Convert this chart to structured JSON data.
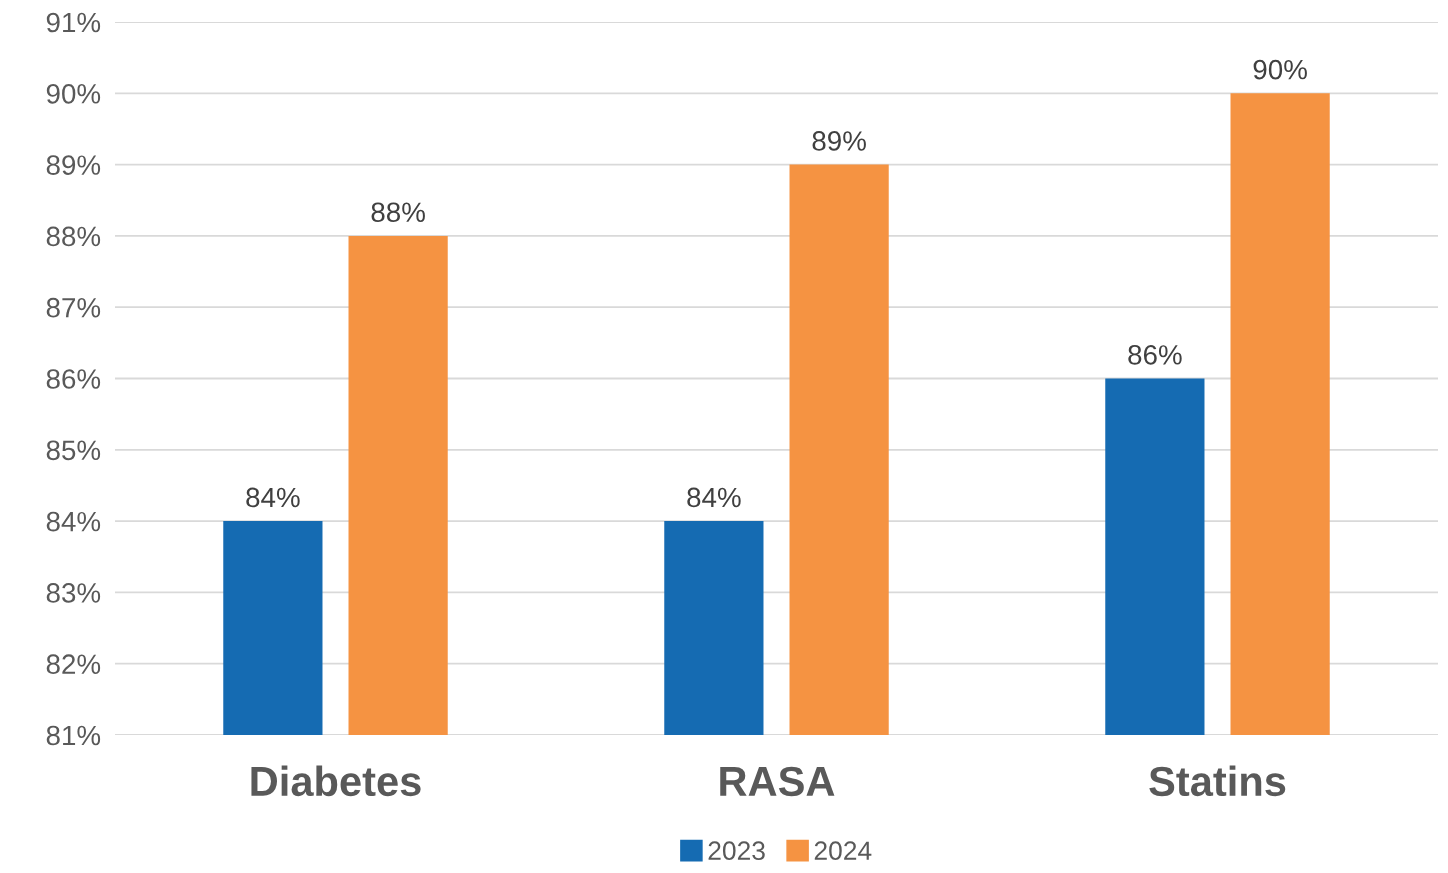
{
  "chart_data": {
    "type": "bar",
    "categories": [
      "Diabetes",
      "RASA",
      "Statins"
    ],
    "series": [
      {
        "name": "2023",
        "color": "#156bb2",
        "values": [
          84,
          84,
          86
        ],
        "value_labels": [
          "84%",
          "84%",
          "86%"
        ]
      },
      {
        "name": "2024",
        "color": "#f59342",
        "values": [
          88,
          89,
          90
        ],
        "value_labels": [
          "88%",
          "89%",
          "90%"
        ]
      }
    ],
    "ylim": [
      81,
      91
    ],
    "yticks": [
      {
        "value": 81,
        "label": "81%"
      },
      {
        "value": 82,
        "label": "82%"
      },
      {
        "value": 83,
        "label": "83%"
      },
      {
        "value": 84,
        "label": "84%"
      },
      {
        "value": 85,
        "label": "85%"
      },
      {
        "value": 86,
        "label": "86%"
      },
      {
        "value": 87,
        "label": "87%"
      },
      {
        "value": 88,
        "label": "88%"
      },
      {
        "value": 89,
        "label": "89%"
      },
      {
        "value": 90,
        "label": "90%"
      },
      {
        "value": 91,
        "label": "91%"
      }
    ],
    "grid": "y",
    "legend": "bottom"
  }
}
